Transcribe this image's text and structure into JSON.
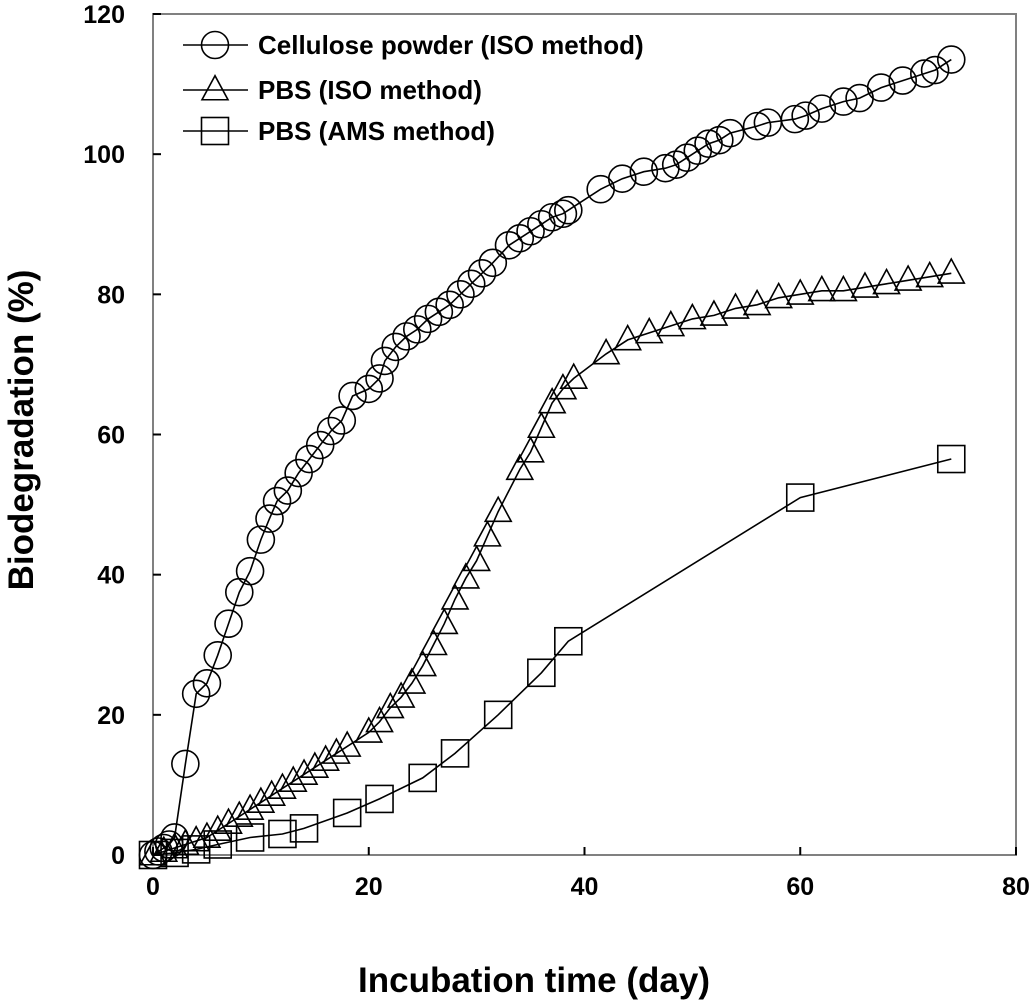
{
  "chart_data": {
    "type": "line",
    "title": "",
    "xlabel": "Incubation time (day)",
    "ylabel": "Biodegradation (%)",
    "xlim": [
      0,
      80
    ],
    "ylim": [
      0,
      120
    ],
    "xticks": [
      0,
      20,
      40,
      60,
      80
    ],
    "yticks": [
      0,
      20,
      40,
      60,
      80,
      100,
      120
    ],
    "grid": false,
    "legend_position": "top-left",
    "series": [
      {
        "name": "Cellulose powder (ISO method)",
        "marker": "circle",
        "x": [
          0,
          0.5,
          1,
          1.5,
          2,
          3,
          4,
          5,
          6,
          7,
          8,
          9,
          10,
          10.8,
          11.5,
          12.5,
          13.5,
          14.5,
          15.5,
          16.5,
          17.5,
          18.5,
          20,
          21,
          21.5,
          22.5,
          23.5,
          24.5,
          25.5,
          26.5,
          27.5,
          28.5,
          29.5,
          30.5,
          31.5,
          33,
          34,
          35,
          36,
          37,
          38,
          38.5,
          41.5,
          43.5,
          45.5,
          47.5,
          48.5,
          49.5,
          50.5,
          51.5,
          52.5,
          53.5,
          56,
          57,
          59.5,
          60.5,
          62,
          64,
          65.5,
          67.5,
          69.5,
          71.5,
          72.5,
          74
        ],
        "y": [
          0,
          0.5,
          1,
          1.5,
          2.5,
          13,
          23,
          24.5,
          28.5,
          33,
          37.5,
          40.5,
          45,
          48,
          50.5,
          52,
          54.5,
          56.5,
          58.5,
          60.5,
          62,
          65.5,
          66.5,
          68,
          70.5,
          72.5,
          74,
          75,
          76.5,
          77.5,
          78.5,
          80,
          81.5,
          83,
          84.5,
          87,
          88,
          89,
          90,
          91,
          91.5,
          92,
          95,
          96.5,
          97.5,
          98,
          98.5,
          99.5,
          100.5,
          101.5,
          102,
          103,
          104,
          104.5,
          105,
          105.5,
          106.5,
          107.5,
          108,
          109.5,
          110.5,
          111.5,
          112,
          113.5
        ]
      },
      {
        "name": "PBS (ISO method)",
        "marker": "triangle",
        "x": [
          0,
          1,
          2,
          3,
          4,
          5,
          6,
          7,
          8,
          9,
          10,
          11,
          12,
          13,
          14,
          15,
          16,
          17,
          18,
          20,
          21,
          22,
          23,
          24,
          25,
          26,
          27,
          28,
          29,
          30,
          31,
          32,
          34,
          35,
          36,
          37,
          38,
          39,
          42,
          44,
          46,
          48,
          50,
          52,
          54,
          56,
          58,
          60,
          62,
          64,
          66,
          68,
          70,
          72,
          74
        ],
        "y": [
          0,
          0.5,
          1,
          1.5,
          2,
          2.5,
          3.5,
          4.5,
          5.5,
          6.5,
          7.5,
          8.5,
          9.5,
          10.5,
          11.5,
          12.5,
          13.5,
          14.5,
          15.5,
          17.5,
          19,
          21,
          22.5,
          24.5,
          27,
          30,
          33,
          36.5,
          39.5,
          42,
          45.5,
          49,
          55,
          57.5,
          61,
          64.5,
          66.5,
          68,
          71.5,
          73.5,
          74.5,
          75.5,
          76.5,
          77,
          78,
          78.5,
          79.5,
          80,
          80.5,
          80.5,
          81,
          81.5,
          82,
          82.5,
          83
        ]
      },
      {
        "name": "PBS (AMS method)",
        "marker": "square",
        "x": [
          0,
          2,
          4,
          6,
          9,
          12,
          14,
          18,
          21,
          25,
          28,
          32,
          36,
          38.5,
          60,
          74
        ],
        "y": [
          0,
          0.3,
          0.8,
          1.5,
          2.5,
          3,
          3.8,
          6,
          8,
          11,
          14.5,
          20,
          26,
          30.5,
          51,
          56.5
        ]
      }
    ]
  }
}
